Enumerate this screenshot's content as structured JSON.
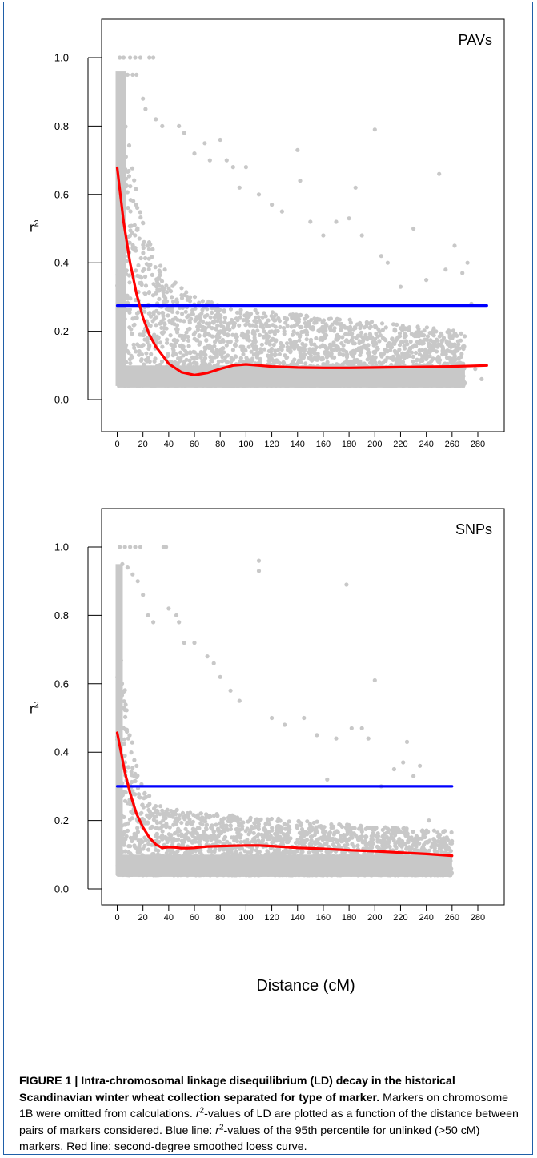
{
  "chart_data": [
    {
      "type": "scatter",
      "panel_label": "PAVs",
      "ylabel_base": "r",
      "ylabel_sup": "2",
      "xlabel": "",
      "xlim": [
        0,
        285
      ],
      "ylim": [
        0.0,
        1.05
      ],
      "x_ticks": [
        0,
        20,
        40,
        60,
        80,
        100,
        120,
        140,
        160,
        180,
        200,
        220,
        240,
        260,
        280
      ],
      "y_ticks": [
        0.0,
        0.2,
        0.4,
        0.6,
        0.8,
        1.0
      ],
      "scatter_color": "#c8c8c8",
      "dense_region": {
        "x_max": 270,
        "y_min": 0.04
      },
      "sample_points": [
        [
          2,
          1.0
        ],
        [
          5,
          1.0
        ],
        [
          10,
          1.0
        ],
        [
          14,
          1.0
        ],
        [
          18,
          1.0
        ],
        [
          25,
          1.0
        ],
        [
          28,
          1.0
        ],
        [
          3,
          0.95
        ],
        [
          8,
          0.95
        ],
        [
          12,
          0.95
        ],
        [
          15,
          0.95
        ],
        [
          20,
          0.88
        ],
        [
          22,
          0.85
        ],
        [
          30,
          0.82
        ],
        [
          35,
          0.8
        ],
        [
          48,
          0.8
        ],
        [
          52,
          0.78
        ],
        [
          60,
          0.72
        ],
        [
          68,
          0.75
        ],
        [
          72,
          0.7
        ],
        [
          80,
          0.76
        ],
        [
          85,
          0.7
        ],
        [
          90,
          0.68
        ],
        [
          95,
          0.62
        ],
        [
          100,
          0.68
        ],
        [
          110,
          0.6
        ],
        [
          120,
          0.57
        ],
        [
          128,
          0.55
        ],
        [
          140,
          0.73
        ],
        [
          142,
          0.64
        ],
        [
          150,
          0.52
        ],
        [
          160,
          0.48
        ],
        [
          170,
          0.52
        ],
        [
          180,
          0.53
        ],
        [
          185,
          0.62
        ],
        [
          190,
          0.48
        ],
        [
          200,
          0.79
        ],
        [
          205,
          0.42
        ],
        [
          210,
          0.4
        ],
        [
          220,
          0.33
        ],
        [
          230,
          0.5
        ],
        [
          240,
          0.35
        ],
        [
          250,
          0.66
        ],
        [
          255,
          0.38
        ],
        [
          262,
          0.45
        ],
        [
          268,
          0.37
        ],
        [
          272,
          0.4
        ],
        [
          275,
          0.28
        ],
        [
          283,
          0.06
        ],
        [
          278,
          0.09
        ]
      ],
      "series": [
        {
          "name": "",
          "color": "#0000ff",
          "x": [
            0,
            287
          ],
          "y": [
            0.275,
            0.275
          ]
        },
        {
          "name": "",
          "color": "#ff0000",
          "x": [
            0,
            5,
            10,
            15,
            20,
            25,
            30,
            40,
            50,
            60,
            70,
            80,
            90,
            100,
            110,
            120,
            140,
            160,
            180,
            200,
            220,
            240,
            260,
            287
          ],
          "y": [
            0.678,
            0.52,
            0.4,
            0.31,
            0.24,
            0.19,
            0.155,
            0.105,
            0.08,
            0.072,
            0.078,
            0.09,
            0.1,
            0.103,
            0.1,
            0.097,
            0.094,
            0.093,
            0.093,
            0.094,
            0.095,
            0.096,
            0.097,
            0.1
          ]
        }
      ]
    },
    {
      "type": "scatter",
      "panel_label": "SNPs",
      "ylabel_base": "r",
      "ylabel_sup": "2",
      "xlabel": "Distance (cM)",
      "xlim": [
        0,
        285
      ],
      "ylim": [
        0.0,
        1.05
      ],
      "x_ticks": [
        0,
        20,
        40,
        60,
        80,
        100,
        120,
        140,
        160,
        180,
        200,
        220,
        240,
        260,
        280
      ],
      "y_ticks": [
        0.0,
        0.2,
        0.4,
        0.6,
        0.8,
        1.0
      ],
      "scatter_color": "#c8c8c8",
      "dense_region": {
        "x_max": 260,
        "y_min": 0.04
      },
      "sample_points": [
        [
          2,
          1.0
        ],
        [
          6,
          1.0
        ],
        [
          10,
          1.0
        ],
        [
          14,
          1.0
        ],
        [
          18,
          1.0
        ],
        [
          36,
          1.0
        ],
        [
          38,
          1.0
        ],
        [
          4,
          0.95
        ],
        [
          8,
          0.94
        ],
        [
          12,
          0.92
        ],
        [
          16,
          0.9
        ],
        [
          20,
          0.86
        ],
        [
          24,
          0.8
        ],
        [
          28,
          0.78
        ],
        [
          40,
          0.82
        ],
        [
          46,
          0.8
        ],
        [
          48,
          0.78
        ],
        [
          52,
          0.72
        ],
        [
          60,
          0.72
        ],
        [
          70,
          0.68
        ],
        [
          75,
          0.66
        ],
        [
          80,
          0.62
        ],
        [
          88,
          0.58
        ],
        [
          95,
          0.55
        ],
        [
          110,
          0.96
        ],
        [
          110,
          0.93
        ],
        [
          120,
          0.5
        ],
        [
          130,
          0.48
        ],
        [
          145,
          0.5
        ],
        [
          155,
          0.45
        ],
        [
          163,
          0.32
        ],
        [
          170,
          0.44
        ],
        [
          178,
          0.89
        ],
        [
          182,
          0.47
        ],
        [
          190,
          0.47
        ],
        [
          195,
          0.44
        ],
        [
          200,
          0.61
        ],
        [
          205,
          0.3
        ],
        [
          215,
          0.35
        ],
        [
          222,
          0.37
        ],
        [
          225,
          0.43
        ],
        [
          230,
          0.33
        ],
        [
          235,
          0.36
        ],
        [
          242,
          0.2
        ],
        [
          250,
          0.15
        ],
        [
          255,
          0.12
        ],
        [
          258,
          0.08
        ]
      ],
      "series": [
        {
          "name": "",
          "color": "#0000ff",
          "x": [
            0,
            260
          ],
          "y": [
            0.3,
            0.3
          ]
        },
        {
          "name": "",
          "color": "#ff0000",
          "x": [
            0,
            3,
            6,
            10,
            15,
            20,
            25,
            30,
            35,
            40,
            45,
            50,
            55,
            60,
            70,
            80,
            90,
            100,
            110,
            120,
            140,
            160,
            180,
            200,
            220,
            240,
            260
          ],
          "y": [
            0.457,
            0.4,
            0.34,
            0.28,
            0.22,
            0.18,
            0.15,
            0.13,
            0.12,
            0.122,
            0.121,
            0.119,
            0.119,
            0.12,
            0.124,
            0.125,
            0.126,
            0.127,
            0.127,
            0.125,
            0.12,
            0.117,
            0.113,
            0.11,
            0.106,
            0.102,
            0.097
          ]
        }
      ]
    }
  ],
  "caption": {
    "label_bold": "FIGURE 1 | Intra-chromosomal linkage disequilibrium (LD) decay in the historical Scandinavian winter wheat collection separated for type of marker.",
    "sentence_1": " Markers on chromosome 1B were omitted from calculations.",
    "r_italic": "r",
    "sup_2a": "2",
    "sentence_2": "-values of LD are plotted as a function of the distance between pairs of markers considered. Blue line: ",
    "r_italic_b": "r",
    "sup_2b": "2",
    "sentence_3": "-values of the 95th percentile for unlinked (>50 cM) markers. Red line: second-degree smoothed loess curve."
  }
}
